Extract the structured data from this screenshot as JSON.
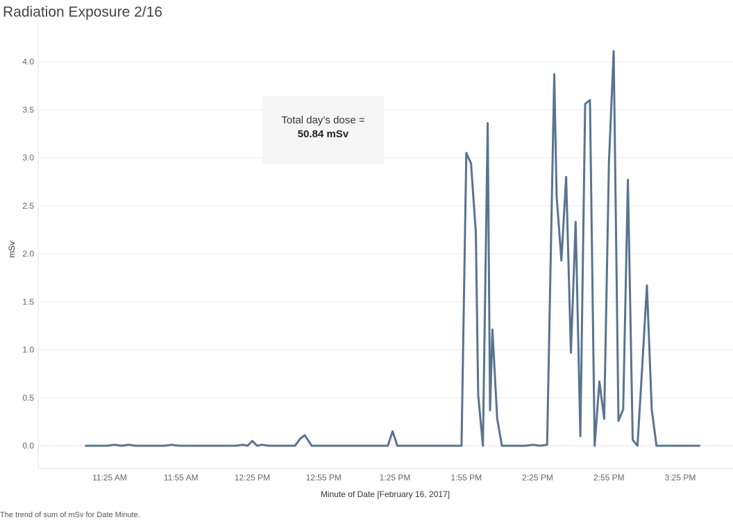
{
  "title": "Radiation Exposure 2/16",
  "annotation": {
    "line1": "Total day’s dose =",
    "line2": "50.84 mSv"
  },
  "caption": "The trend of sum of mSv for Date Minute.",
  "colors": {
    "line": "#587491",
    "grid": "#ececec",
    "zero_line": "#d8a0a0"
  },
  "chart_data": {
    "type": "line",
    "title": "Radiation Exposure 2/16",
    "xlabel": "Minute of Date [February 16, 2017]",
    "ylabel": "mSv",
    "ylim": [
      0,
      4.3
    ],
    "yticks": [
      0.0,
      0.5,
      1.0,
      1.5,
      2.0,
      2.5,
      3.0,
      3.5,
      4.0
    ],
    "ytick_labels": [
      "0.0",
      "0.5",
      "1.0",
      "1.5",
      "2.0",
      "2.5",
      "3.0",
      "3.5",
      "4.0"
    ],
    "xlim": [
      "11:09 AM",
      "3:44 PM"
    ],
    "xticks": [
      "11:25 AM",
      "11:55 AM",
      "12:25 PM",
      "12:55 PM",
      "1:25 PM",
      "1:55 PM",
      "2:25 PM",
      "2:55 PM",
      "3:25 PM"
    ],
    "grid": true,
    "series": [
      {
        "x": [
          "11:15 AM",
          "11:18 AM",
          "11:21 AM",
          "11:24 AM",
          "11:27 AM",
          "11:30 AM",
          "11:33 AM",
          "11:36 AM",
          "11:39 AM",
          "11:42 AM",
          "11:45 AM",
          "11:48 AM",
          "11:51 AM",
          "11:54 AM",
          "11:57 AM",
          "12:00 PM",
          "12:03 PM",
          "12:06 PM",
          "12:09 PM",
          "12:12 PM",
          "12:15 PM",
          "12:18 PM",
          "12:21 PM",
          "12:23 PM",
          "12:25 PM",
          "12:27 PM",
          "12:29 PM",
          "12:32 PM",
          "12:35 PM",
          "12:38 PM",
          "12:41 PM",
          "12:43 PM",
          "12:45 PM",
          "12:47 PM",
          "12:50 PM",
          "12:53 PM",
          "12:56 PM",
          "12:59 PM",
          "1:02 PM",
          "1:05 PM",
          "1:08 PM",
          "1:11 PM",
          "1:14 PM",
          "1:17 PM",
          "1:20 PM",
          "1:22 PM",
          "1:24 PM",
          "1:26 PM",
          "1:29 PM",
          "1:32 PM",
          "1:35 PM",
          "1:38 PM",
          "1:41 PM",
          "1:44 PM",
          "1:47 PM",
          "1:50 PM",
          "1:53 PM",
          "1:55 PM",
          "1:57 PM",
          "1:59 PM",
          "2:00 PM",
          "2:02 PM",
          "2:04 PM",
          "2:05 PM",
          "2:06 PM",
          "2:08 PM",
          "2:10 PM",
          "2:12 PM",
          "2:14 PM",
          "2:17 PM",
          "2:20 PM",
          "2:23 PM",
          "2:26 PM",
          "2:29 PM",
          "2:32 PM",
          "2:33 PM",
          "2:35 PM",
          "2:37 PM",
          "2:39 PM",
          "2:41 PM",
          "2:43 PM",
          "2:45 PM",
          "2:47 PM",
          "2:49 PM",
          "2:51 PM",
          "2:53 PM",
          "2:55 PM",
          "2:57 PM",
          "2:59 PM",
          "3:01 PM",
          "3:03 PM",
          "3:05 PM",
          "3:07 PM",
          "3:09 PM",
          "3:11 PM",
          "3:13 PM",
          "3:15 PM",
          "3:17 PM",
          "3:19 PM",
          "3:21 PM",
          "3:24 PM",
          "3:27 PM",
          "3:30 PM",
          "3:33 PM"
        ],
        "values": [
          0.0,
          0.0,
          0.0,
          0.0,
          0.01,
          0.0,
          0.01,
          0.0,
          0.0,
          0.0,
          0.0,
          0.0,
          0.01,
          0.0,
          0.0,
          0.0,
          0.0,
          0.0,
          0.0,
          0.0,
          0.0,
          0.0,
          0.01,
          0.0,
          0.05,
          0.0,
          0.01,
          0.0,
          0.0,
          0.0,
          0.0,
          0.0,
          0.07,
          0.11,
          0.0,
          0.0,
          0.0,
          0.0,
          0.0,
          0.0,
          0.0,
          0.0,
          0.0,
          0.0,
          0.0,
          0.0,
          0.15,
          0.0,
          0.0,
          0.0,
          0.0,
          0.0,
          0.0,
          0.0,
          0.0,
          0.0,
          0.0,
          3.05,
          2.94,
          2.22,
          0.53,
          0.0,
          3.36,
          0.37,
          1.21,
          0.28,
          0.0,
          0.0,
          0.0,
          0.0,
          0.0,
          0.01,
          0.0,
          0.01,
          3.87,
          2.6,
          1.93,
          2.8,
          0.97,
          2.33,
          0.1,
          3.56,
          3.6,
          0.0,
          0.67,
          0.28,
          2.96,
          4.11,
          0.26,
          0.38,
          2.77,
          0.06,
          0.0,
          0.82,
          1.67,
          0.38,
          0.0,
          0.0,
          0.0,
          0.0,
          0.0,
          0.0,
          0.0,
          0.0
        ]
      }
    ]
  }
}
